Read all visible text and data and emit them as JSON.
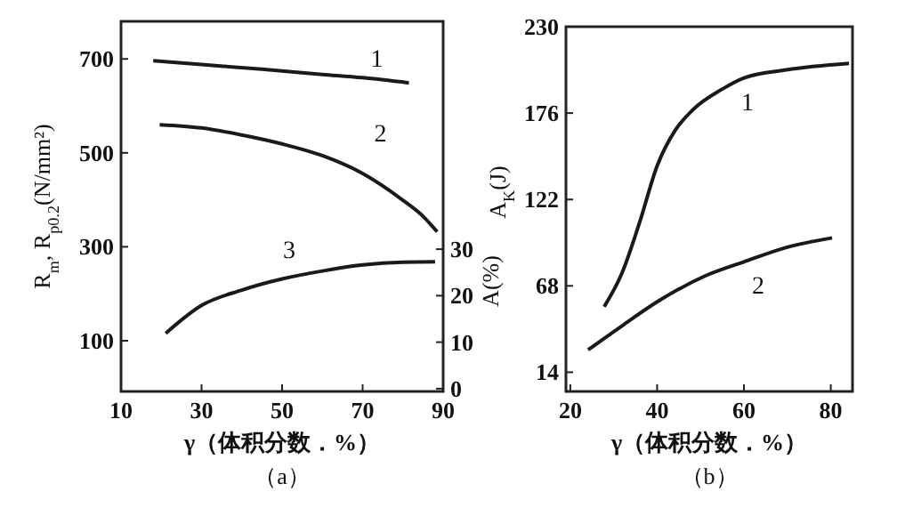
{
  "chart_data": [
    {
      "type": "line",
      "xlabel": "γ（体积分数．%）",
      "ylabel": "R$_{m}$, R$_{p0.2}$(N/mm²)",
      "y2label": "A(%)",
      "xlim": [
        10,
        90
      ],
      "xticks": [
        10,
        30,
        50,
        70,
        90
      ],
      "ylim": [
        -8,
        780
      ],
      "yticks": [
        100,
        300,
        500,
        700
      ],
      "y2lim": [
        -0.6,
        79
      ],
      "y2ticks": [
        0,
        10,
        20,
        30
      ],
      "series": [
        {
          "name": "1",
          "color": "#1a1a1a",
          "x": [
            18,
            30,
            45,
            60,
            70,
            81.5
          ],
          "values": [
            696,
            688,
            678,
            667,
            660,
            649
          ]
        },
        {
          "name": "2",
          "color": "#1a1a1a",
          "x": [
            19.6,
            30,
            40,
            50,
            60,
            70,
            80,
            85,
            88.5
          ],
          "values": [
            560,
            553,
            538,
            519,
            494,
            456,
            399,
            365,
            332
          ]
        },
        {
          "name": "3",
          "color": "#1a1a1a",
          "axis": "y2",
          "x": [
            21.1,
            30,
            40,
            50,
            60,
            70,
            80,
            88
          ],
          "values": [
            11.9,
            17.9,
            21.2,
            23.6,
            25.3,
            26.6,
            27.2,
            27.3
          ]
        }
      ],
      "annotations": [
        "（a）"
      ]
    },
    {
      "type": "line",
      "xlabel": "γ（体积分数．%）",
      "ylabel": "A$_{K}$(J)",
      "xlim": [
        19,
        85
      ],
      "xticks": [
        20,
        40,
        60,
        80
      ],
      "ylim": [
        2,
        230
      ],
      "yticks": [
        14,
        68,
        122,
        176,
        230
      ],
      "series": [
        {
          "name": "1",
          "color": "#1a1a1a",
          "x": [
            27.8,
            31.9,
            36,
            40,
            44.1,
            48.2,
            55,
            60,
            69.8,
            84.2
          ],
          "values": [
            55,
            76,
            108,
            143,
            165,
            178,
            191,
            198,
            203,
            207
          ]
        },
        {
          "name": "2",
          "color": "#1a1a1a",
          "x": [
            24.1,
            31.9,
            40,
            50.9,
            60,
            69.8,
            80.3
          ],
          "values": [
            28,
            43,
            58,
            74,
            83,
            92,
            98
          ]
        }
      ],
      "annotations": [
        "（b）"
      ]
    }
  ]
}
